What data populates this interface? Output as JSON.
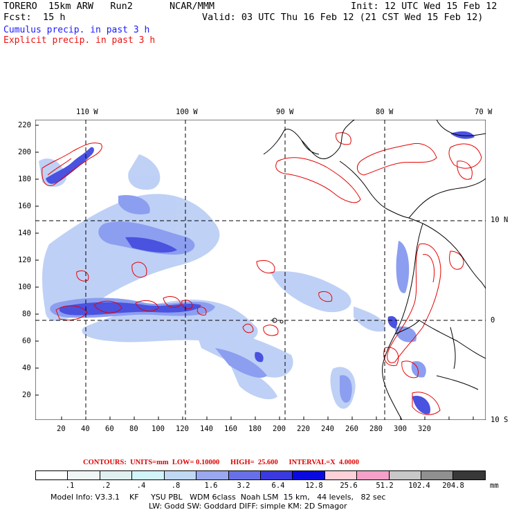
{
  "header": {
    "model": "TORERO  15km ARW   Run2",
    "org": "NCAR/MMM",
    "init": "Init: 12 UTC Wed 15 Feb 12",
    "fcst_label": "Fcst:",
    "fcst_value": "15 h",
    "valid": "Valid: 03 UTC Thu 16 Feb 12 (21 CST Wed 15 Feb 12)",
    "cumulus": "Cumulus precip. in past 3 h",
    "explicit": "Explicit precip. in past 3 h"
  },
  "map": {
    "top_lon_labels": [
      "110 W",
      "100 W",
      "90 W",
      "80 W",
      "70 W"
    ],
    "right_lat_labels": [
      "10 N",
      "0",
      "10 S"
    ],
    "y_ticks": [
      "220",
      "200",
      "180",
      "160",
      "140",
      "120",
      "100",
      "80",
      "60",
      "40",
      "20"
    ],
    "x_ticks": [
      "20",
      "40",
      "60",
      "80",
      "100",
      "120",
      "140",
      "160",
      "180",
      "200",
      "220",
      "240",
      "260",
      "280",
      "300",
      "320"
    ],
    "features": {
      "cumulus_fill_colors": [
        "#b4c8f4",
        "#8c9ef0",
        "#5a64e6",
        "#2828d2"
      ],
      "explicit_contour_color": "#e60000"
    }
  },
  "contours": {
    "label": "CONTOURS:  UNITS=mm  LOW= 0.10000      HIGH=  25.600      INTERVAL=X  4.0000"
  },
  "legend": {
    "colors": [
      "#ffffff",
      "#f0f6f6",
      "#e0f0f0",
      "#d2f4fb",
      "#c0d8f4",
      "#9aa8f0",
      "#6870e8",
      "#3a3ae0",
      "#0a0ae0",
      "#ffd0d8",
      "#f5a0c8",
      "#c8c8c8",
      "#909090",
      "#383838",
      "#d8a0f0"
    ],
    "labels": [
      ".1",
      ".2",
      ".4",
      ".8",
      "1.6",
      "3.2",
      "6.4",
      "12.8",
      "25.6",
      "51.2",
      "102.4",
      "204.8"
    ],
    "unit": "mm"
  },
  "footer": {
    "line1": "Model Info: V3.3.1    KF     YSU PBL   WDM 6class  Noah LSM  15 km,   44 levels,   82 sec",
    "line2": "LW: Godd SW: Goddard DIFF: simple KM: 2D Smagor"
  }
}
